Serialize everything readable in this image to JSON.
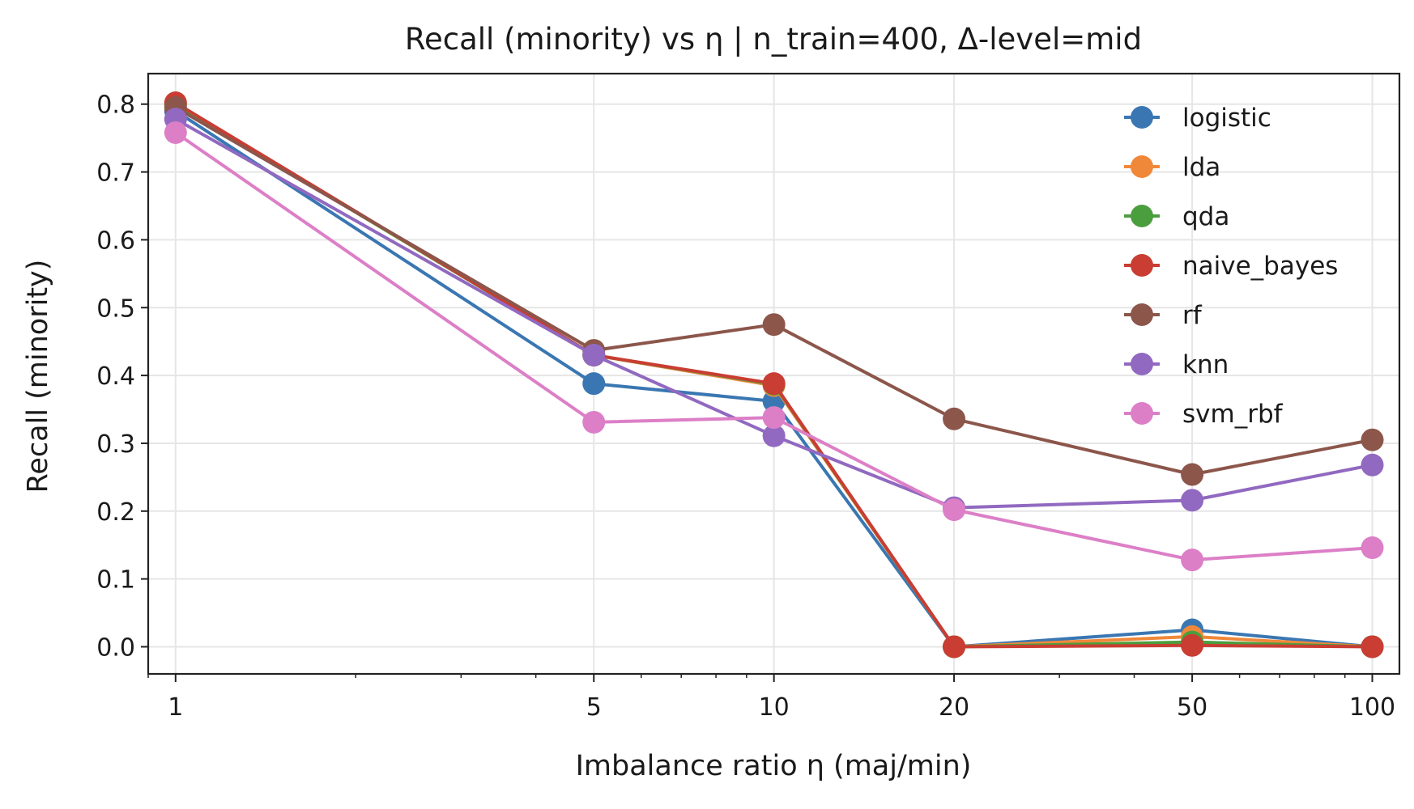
{
  "chart_data": {
    "type": "line",
    "title": "Recall (minority) vs η  |  n_train=400, Δ-level=mid",
    "xlabel": "Imbalance ratio η (maj/min)",
    "ylabel": "Recall (minority)",
    "xscale": "log",
    "xlim": [
      0.9,
      111
    ],
    "ylim": [
      -0.04,
      0.845
    ],
    "grid": true,
    "legend_position": "top-right",
    "x": [
      1,
      5,
      10,
      20,
      50,
      100
    ],
    "xtick_labels": [
      "1",
      "5",
      "10",
      "20",
      "50",
      "100"
    ],
    "yticks": [
      0.0,
      0.1,
      0.2,
      0.3,
      0.4,
      0.5,
      0.6,
      0.7,
      0.8
    ],
    "ytick_labels": [
      "0.0",
      "0.1",
      "0.2",
      "0.3",
      "0.4",
      "0.5",
      "0.6",
      "0.7",
      "0.8"
    ],
    "series": [
      {
        "name": "logistic",
        "color": "#3a77b2",
        "values": [
          0.79,
          0.388,
          0.362,
          0.0,
          0.025,
          0.0
        ]
      },
      {
        "name": "lda",
        "color": "#f0883a",
        "values": [
          0.8,
          0.43,
          0.385,
          0.0,
          0.015,
          0.0
        ]
      },
      {
        "name": "qda",
        "color": "#4b9e3d",
        "values": [
          0.8,
          0.43,
          0.387,
          0.0,
          0.007,
          0.0
        ]
      },
      {
        "name": "naive_bayes",
        "color": "#c93d33",
        "values": [
          0.802,
          0.43,
          0.388,
          0.0,
          0.002,
          0.0
        ]
      },
      {
        "name": "rf",
        "color": "#8c564b",
        "values": [
          0.795,
          0.437,
          0.475,
          0.336,
          0.254,
          0.305
        ]
      },
      {
        "name": "knn",
        "color": "#9169c0",
        "values": [
          0.778,
          0.43,
          0.311,
          0.205,
          0.216,
          0.268
        ]
      },
      {
        "name": "svm_rbf",
        "color": "#dc7fc7",
        "values": [
          0.758,
          0.331,
          0.338,
          0.202,
          0.128,
          0.146
        ]
      }
    ]
  }
}
